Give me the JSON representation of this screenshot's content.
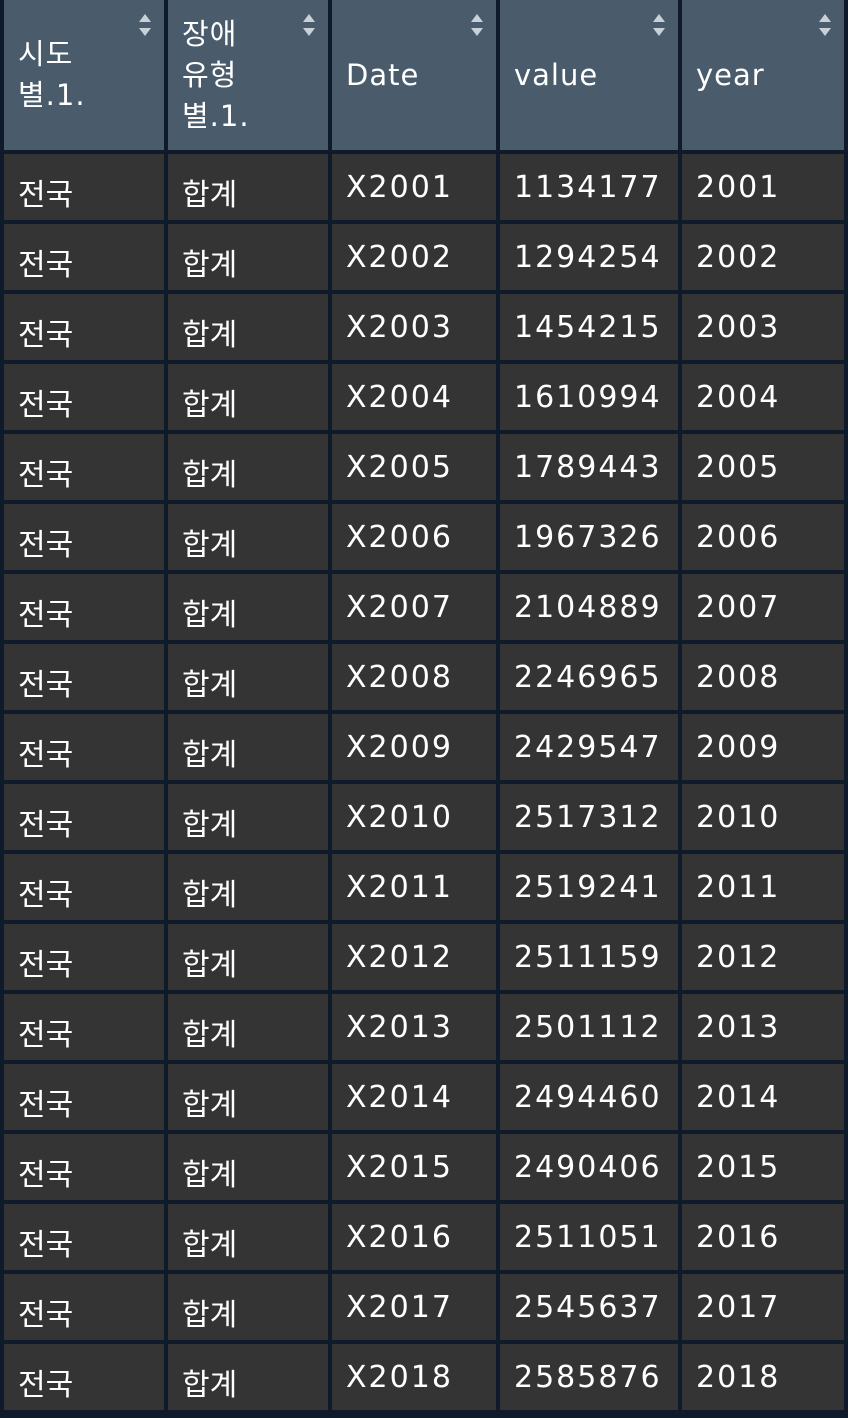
{
  "columns": [
    {
      "label_lines": [
        "시도",
        "별.1."
      ]
    },
    {
      "label_lines": [
        "장애",
        "유형",
        "별.1."
      ]
    },
    {
      "label_lines": [
        "Date"
      ]
    },
    {
      "label_lines": [
        "value"
      ]
    },
    {
      "label_lines": [
        "year"
      ]
    }
  ],
  "sort_icon": "sort-updown-icon",
  "colors": {
    "header_bg": "#4a5c6b",
    "cell_bg": "#343434",
    "grid": "#0f1b2a",
    "text": "#ffffff"
  },
  "rows": [
    [
      "전국",
      "합계",
      "X2001",
      "1134177",
      "2001"
    ],
    [
      "전국",
      "합계",
      "X2002",
      "1294254",
      "2002"
    ],
    [
      "전국",
      "합계",
      "X2003",
      "1454215",
      "2003"
    ],
    [
      "전국",
      "합계",
      "X2004",
      "1610994",
      "2004"
    ],
    [
      "전국",
      "합계",
      "X2005",
      "1789443",
      "2005"
    ],
    [
      "전국",
      "합계",
      "X2006",
      "1967326",
      "2006"
    ],
    [
      "전국",
      "합계",
      "X2007",
      "2104889",
      "2007"
    ],
    [
      "전국",
      "합계",
      "X2008",
      "2246965",
      "2008"
    ],
    [
      "전국",
      "합계",
      "X2009",
      "2429547",
      "2009"
    ],
    [
      "전국",
      "합계",
      "X2010",
      "2517312",
      "2010"
    ],
    [
      "전국",
      "합계",
      "X2011",
      "2519241",
      "2011"
    ],
    [
      "전국",
      "합계",
      "X2012",
      "2511159",
      "2012"
    ],
    [
      "전국",
      "합계",
      "X2013",
      "2501112",
      "2013"
    ],
    [
      "전국",
      "합계",
      "X2014",
      "2494460",
      "2014"
    ],
    [
      "전국",
      "합계",
      "X2015",
      "2490406",
      "2015"
    ],
    [
      "전국",
      "합계",
      "X2016",
      "2511051",
      "2016"
    ],
    [
      "전국",
      "합계",
      "X2017",
      "2545637",
      "2017"
    ],
    [
      "전국",
      "합계",
      "X2018",
      "2585876",
      "2018"
    ]
  ]
}
